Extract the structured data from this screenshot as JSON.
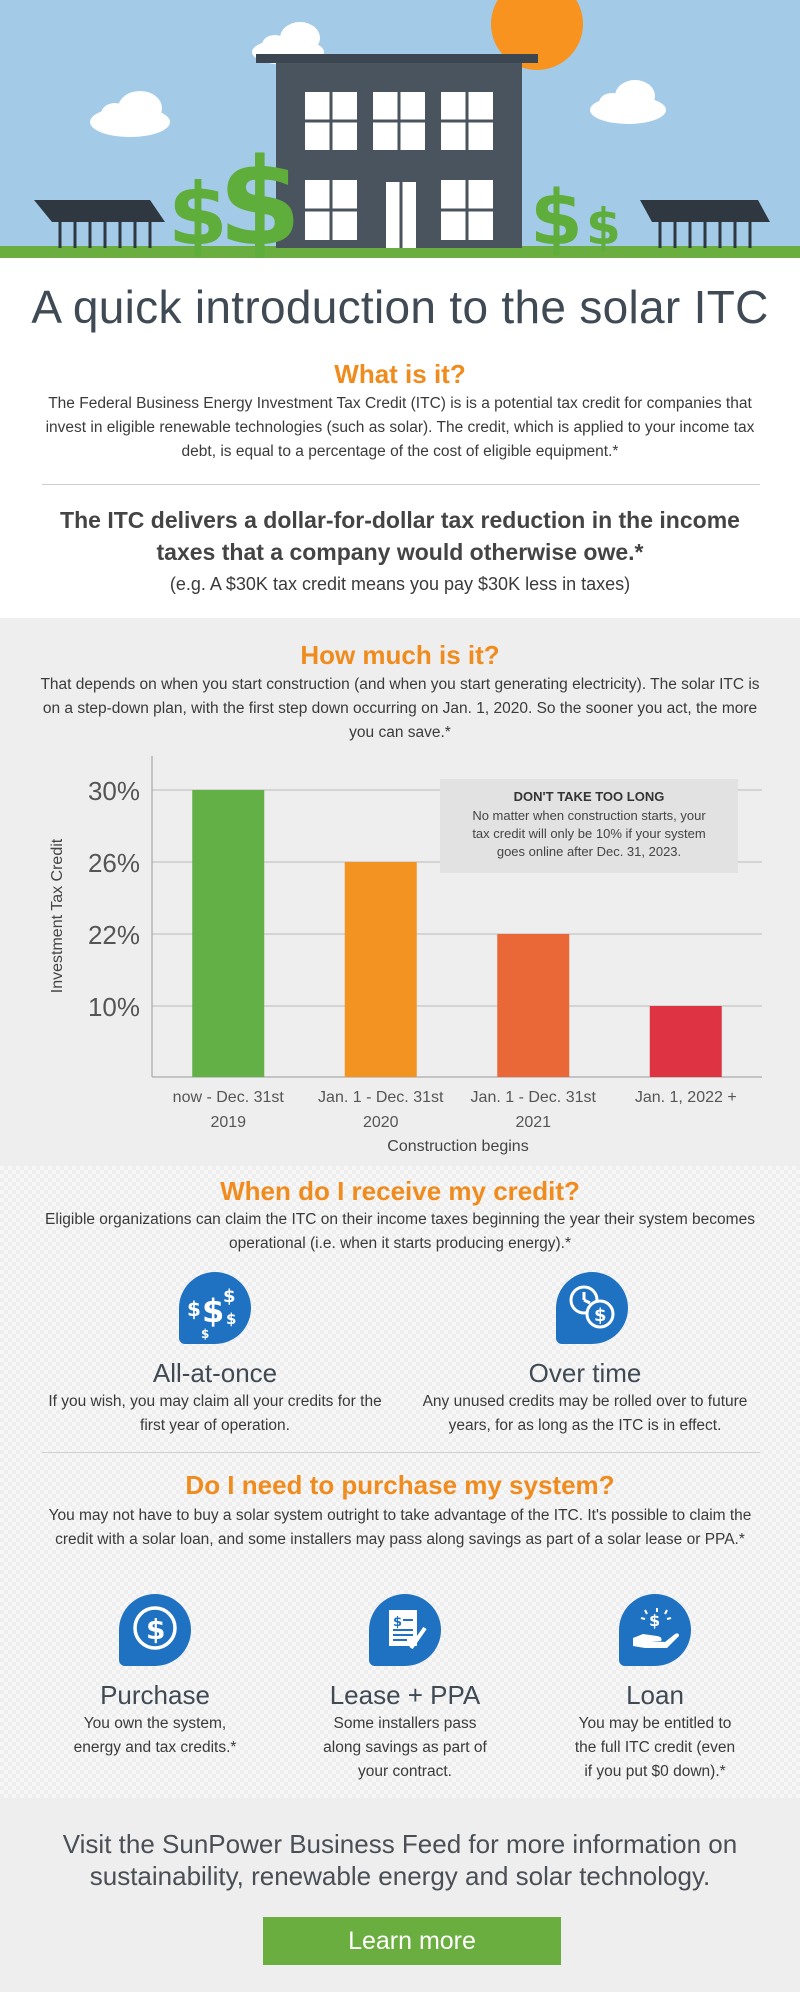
{
  "intro": {
    "title": "A quick introduction to the solar ITC",
    "what_heading": "What is it?",
    "what_text": "The Federal Business Energy Investment Tax Credit (ITC) is is a potential tax credit for companies that invest in eligible renewable technologies (such as solar). The credit, which is applied to your income tax debt, is equal to a percentage of the cost of eligible equipment.*",
    "statement": "The ITC delivers a dollar-for-dollar tax reduction in the income taxes that a company would otherwise owe.*",
    "statement_example": "(e.g. A $30K tax credit means you pay $30K less in taxes)"
  },
  "how_much": {
    "heading": "How much is it?",
    "text": "That depends on when you start construction (and when you start generating electricity). The solar ITC is on a step-down plan, with the first step down occurring on Jan. 1, 2020. So the sooner you act, the more you can save.*"
  },
  "chart_data": {
    "type": "bar",
    "categories": [
      "now - Dec. 31st 2019",
      "Jan. 1 - Dec. 31st 2020",
      "Jan. 1 - Dec. 31st 2021",
      "Jan. 1, 2022 +"
    ],
    "category_lines": [
      [
        "now - Dec. 31st",
        "2019"
      ],
      [
        "Jan. 1 - Dec. 31st",
        "2020"
      ],
      [
        "Jan. 1 - Dec. 31st",
        "2021"
      ],
      [
        "Jan. 1, 2022 +"
      ]
    ],
    "values": [
      30,
      26,
      22,
      10
    ],
    "ytick_labels": [
      "30%",
      "26%",
      "22%",
      "10%"
    ],
    "colors": [
      "#62b046",
      "#f29322",
      "#ea6838",
      "#de3342"
    ],
    "xlabel": "Construction begins",
    "ylabel": "Investment Tax Credit",
    "grid": true,
    "annotation": {
      "title": "DON'T TAKE TOO LONG",
      "lines": [
        "No matter when construction starts, your",
        "tax credit will only be 10% if your system",
        "goes online after Dec. 31, 2023."
      ]
    }
  },
  "receive": {
    "heading": "When do I receive my credit?",
    "text": "Eligible organizations can claim the ITC on their income taxes beginning the year their system becomes operational (i.e. when it starts producing energy).*",
    "options": [
      {
        "icon": "dollar-signs-icon",
        "title": "All-at-once",
        "text": "If you wish, you may claim all your credits for the first year of operation."
      },
      {
        "icon": "clock-dollar-icon",
        "title": "Over time",
        "text": "Any unused credits may be rolled over to future years, for as long as the ITC is in effect."
      }
    ]
  },
  "purchase": {
    "heading": "Do I need to purchase my system?",
    "text": "You may not have to buy a solar system outright to take advantage of the ITC. It's possible to claim the credit with a solar loan, and some installers may pass along savings as part of a solar lease or PPA.*",
    "options": [
      {
        "icon": "dollar-coin-icon",
        "title": "Purchase",
        "text": "You own the system, energy and tax credits.*"
      },
      {
        "icon": "contract-icon",
        "title": "Lease + PPA",
        "text": "Some installers pass along savings as part of your contract."
      },
      {
        "icon": "hand-money-icon",
        "title": "Loan",
        "text": "You may be entitled to the full ITC credit (even if you put $0 down).*"
      }
    ]
  },
  "cta": {
    "text": "Visit the SunPower Business Feed for more information on sustainability, renewable energy and solar technology.",
    "button": "Learn more"
  },
  "colors": {
    "accent_orange": "#f08b1d",
    "icon_blue": "#1f71c1",
    "button_green": "#6aae3f",
    "sky": "#a3cbe8"
  }
}
